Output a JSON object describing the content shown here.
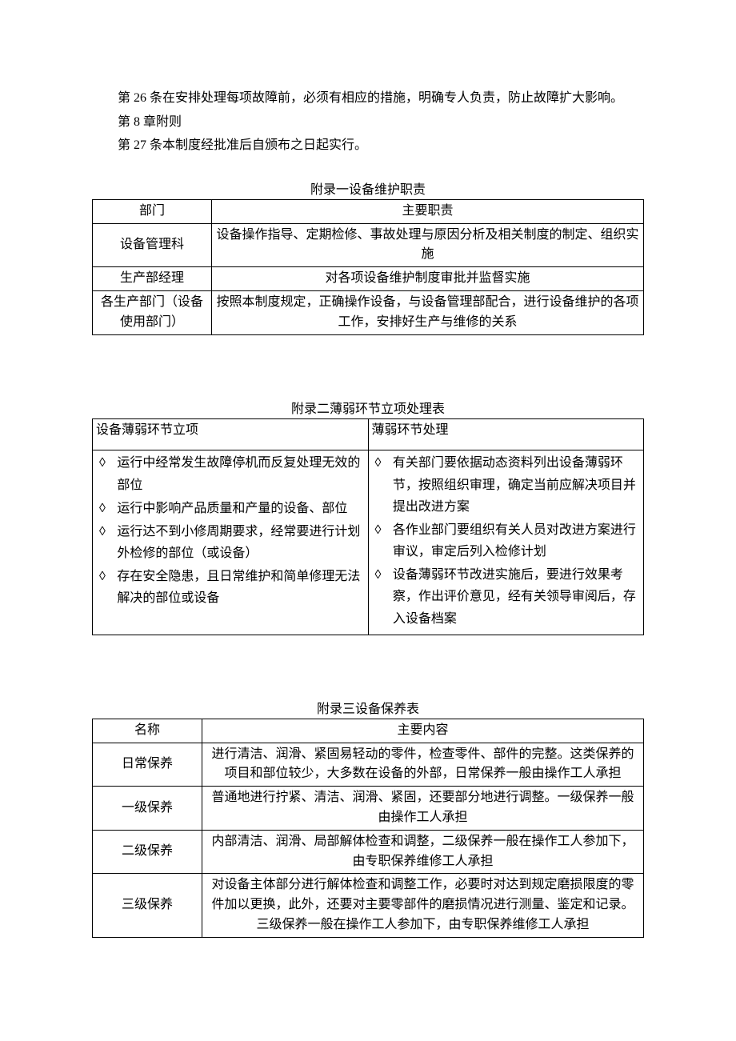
{
  "paragraphs": {
    "p1": "第 26 条在安排处理每项故障前，必须有相应的措施，明确专人负责，防止故障扩大影响。",
    "p2": "第 8 章附则",
    "p3": "第 27 条本制度经批准后自颁布之日起实行。"
  },
  "appendix1": {
    "title": "附录一设备维护职责",
    "header": {
      "col1": "部门",
      "col2": "主要职责"
    },
    "rows": [
      {
        "dept": "设备管理科",
        "duty": "设备操作指导、定期检修、事故处理与原因分析及相关制度的制定、组织实施"
      },
      {
        "dept": "生产部经理",
        "duty": "对各项设备维护制度审批并监督实施"
      },
      {
        "dept": "各生产部门（设备使用部门）",
        "duty": "按照本制度规定，正确操作设备，与设备管理部配合，进行设备维护的各项工作，安排好生产与维修的关系"
      }
    ]
  },
  "appendix2": {
    "title": "附录二薄弱环节立项处理表",
    "header": {
      "col1": "设备薄弱环节立项",
      "col2": "薄弱环节处理"
    },
    "leftItems": [
      "运行中经常发生故障停机而反复处理无效的部位",
      "运行中影响产品质量和产量的设备、部位",
      "运行达不到小修周期要求，经常要进行计划外检修的部位（或设备）",
      "存在安全隐患，且日常维护和简单修理无法解决的部位或设备"
    ],
    "rightItems": [
      "有关部门要依据动态资料列出设备薄弱环节，按照组织审理，确定当前应解决项目并提出改进方案",
      "各作业部门要组织有关人员对改进方案进行审议，审定后列入检修计划",
      "设备薄弱环节改进实施后，要进行效果考察，作出评价意见，经有关领导审阅后，存入设备档案"
    ]
  },
  "appendix3": {
    "title": "附录三设备保养表",
    "header": {
      "col1": "名称",
      "col2": "主要内容"
    },
    "rows": [
      {
        "name": "日常保养",
        "content": "进行清洁、润滑、紧固易轻动的零件，检查零件、部件的完整。这类保养的项目和部位较少，大多数在设备的外部，日常保养一般由操作工人承担"
      },
      {
        "name": "一级保养",
        "content": "普通地进行拧紧、清洁、润滑、紧固，还要部分地进行调整。一级保养一般由操作工人承担"
      },
      {
        "name": "二级保养",
        "content": "内部清洁、润滑、局部解体检查和调整，二级保养一般在操作工人参加下，由专职保养维修工人承担"
      },
      {
        "name": "三级保养",
        "content": "对设备主体部分进行解体检查和调整工作，必要时对达到规定磨损限度的零件加以更换，此外，还要对主要零部件的磨损情况进行测量、鉴定和记录。三级保养一般在操作工人参加下，由专职保养维修工人承担"
      }
    ]
  },
  "style": {
    "background_color": "#ffffff",
    "text_color": "#000000",
    "border_color": "#000000",
    "font_family": "SimSun",
    "base_font_size": 16
  }
}
